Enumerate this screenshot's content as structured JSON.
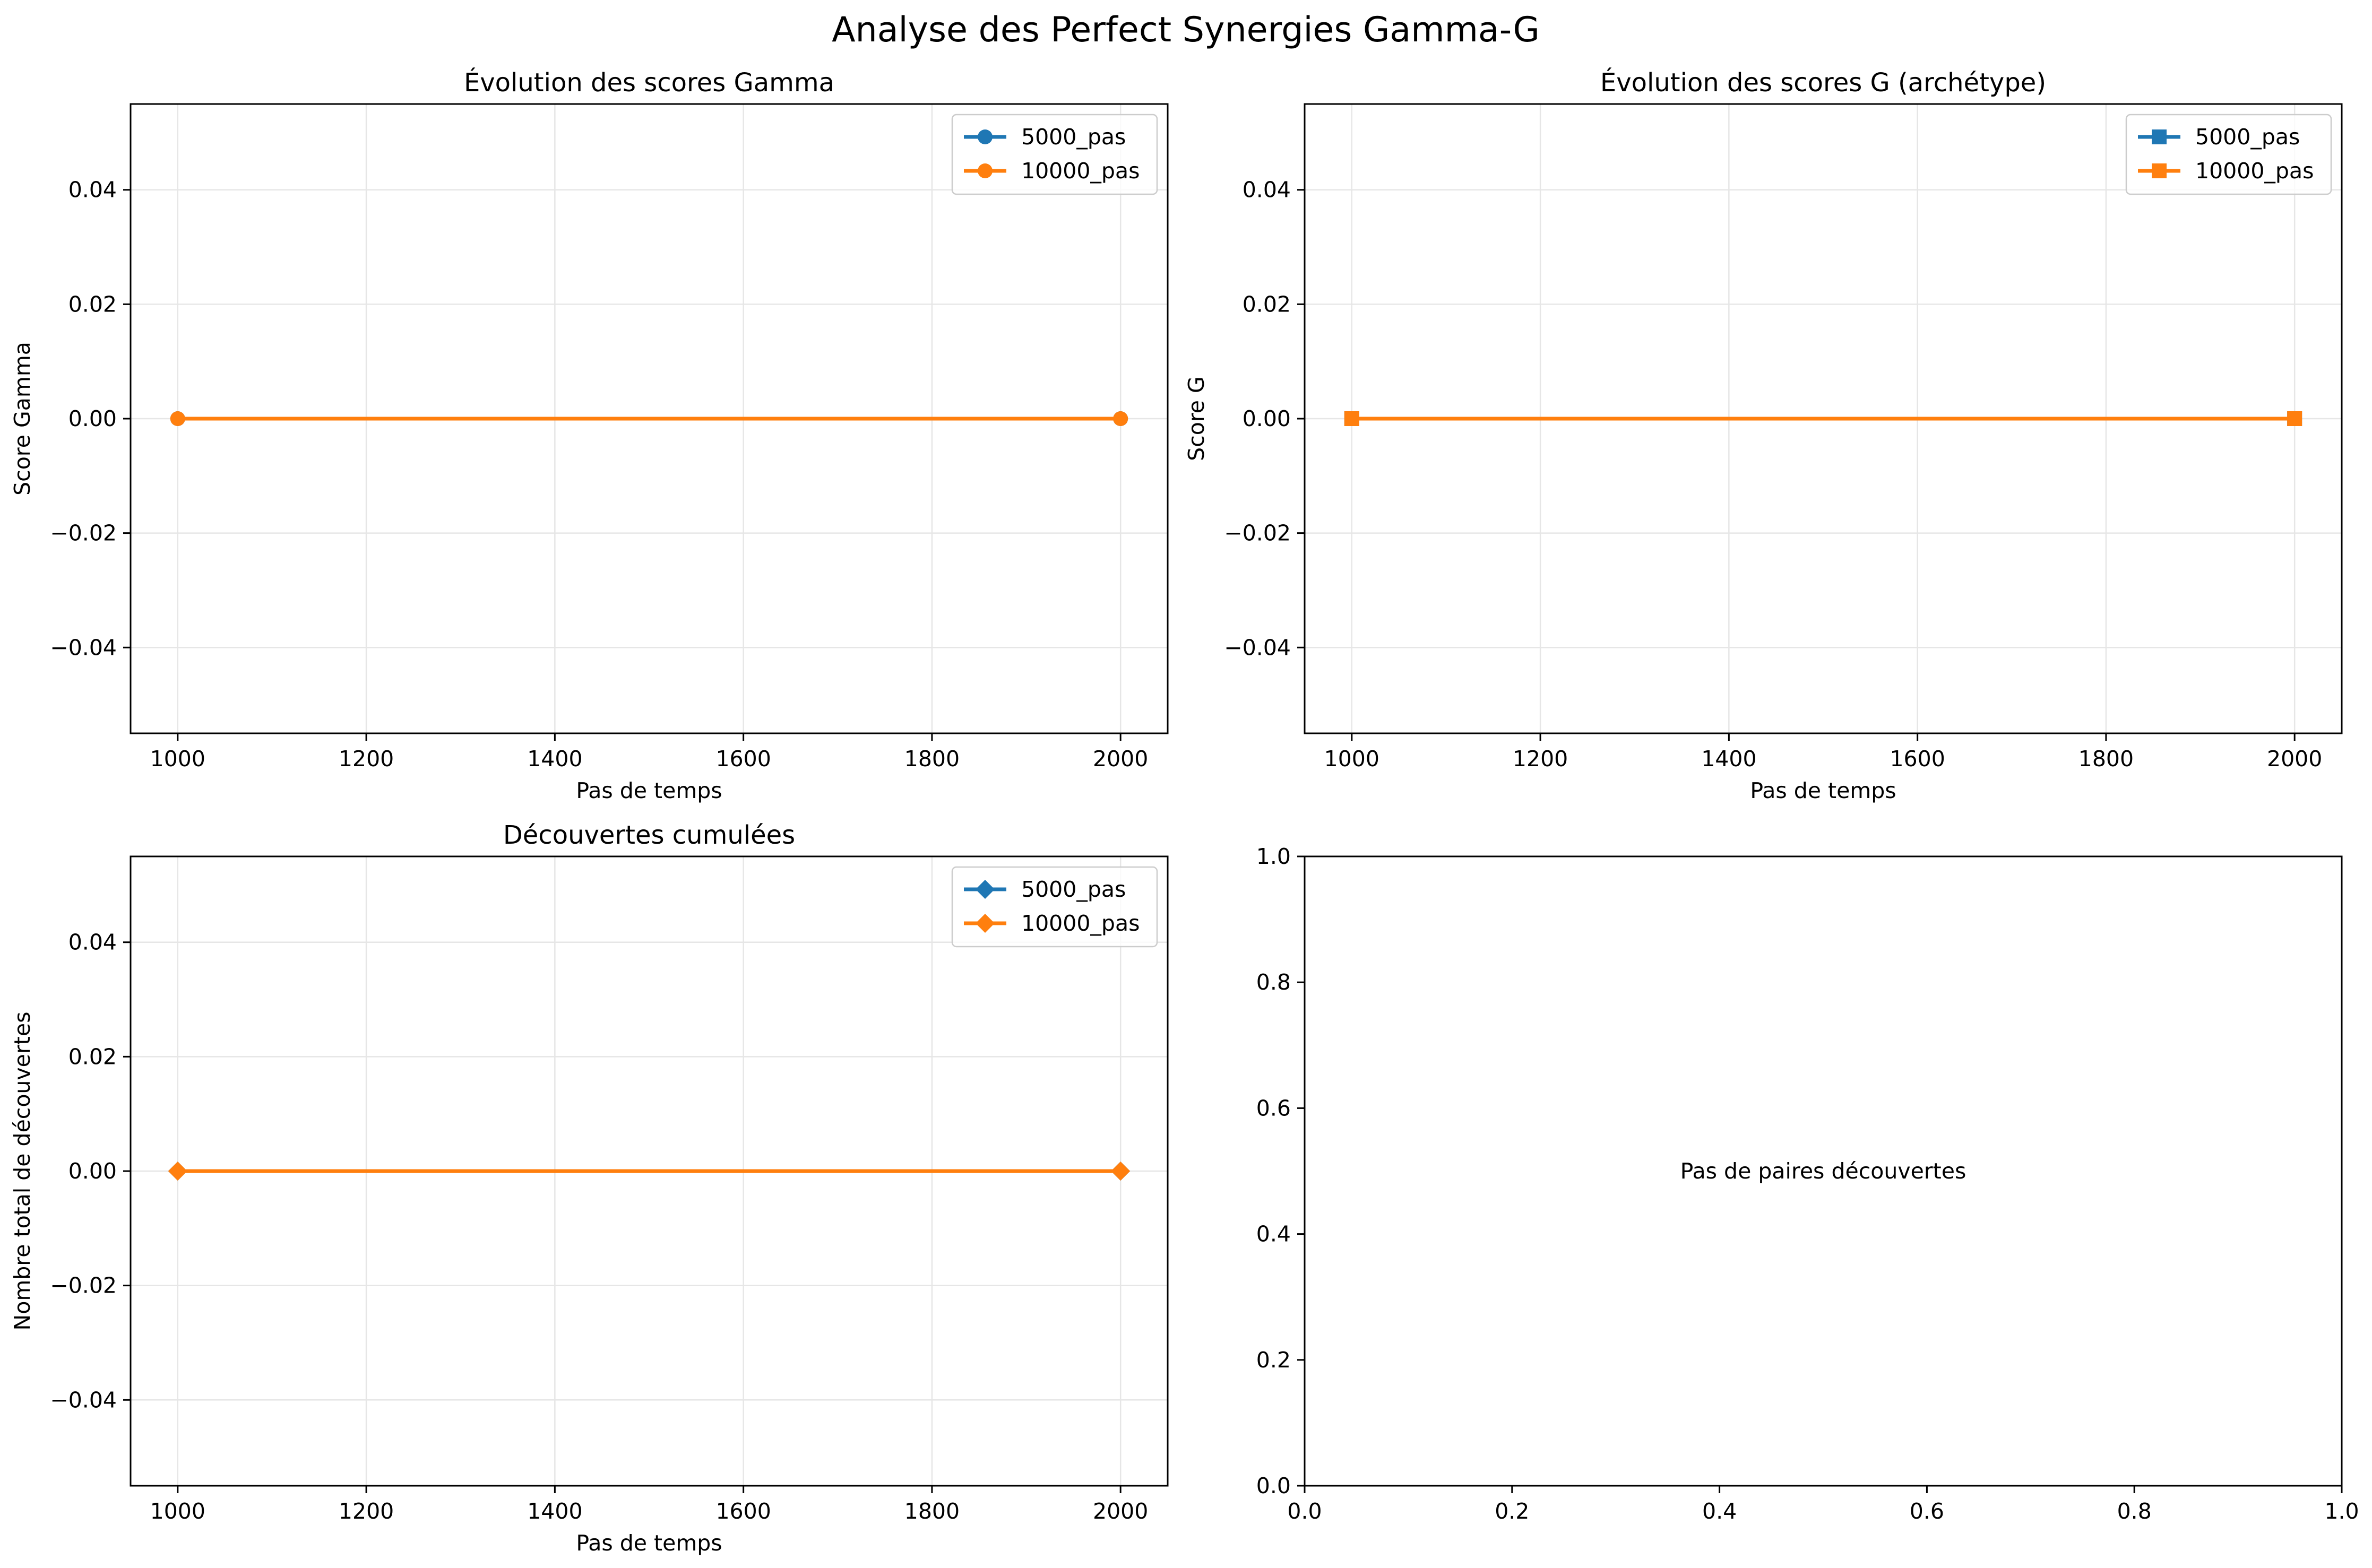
{
  "figure": {
    "title": "Analyse des Perfect Synergies Gamma-G"
  },
  "chart_data": [
    {
      "type": "line",
      "title": "Évolution des scores Gamma",
      "xlabel": "Pas de temps",
      "ylabel": "Score Gamma",
      "xlim": [
        950,
        2050
      ],
      "ylim": [
        -0.055,
        0.055
      ],
      "xticks": [
        1000,
        1200,
        1400,
        1600,
        1800,
        2000
      ],
      "yticks": [
        -0.04,
        -0.02,
        0.0,
        0.02,
        0.04
      ],
      "xtick_labels": [
        "1000",
        "1200",
        "1400",
        "1600",
        "1800",
        "2000"
      ],
      "ytick_labels": [
        "−0.04",
        "−0.02",
        "0.00",
        "0.02",
        "0.04"
      ],
      "grid": true,
      "legend": "top-right",
      "marker": "circle",
      "x": [
        1000,
        2000
      ],
      "series": [
        {
          "name": "5000_pas",
          "values": [
            0,
            0
          ],
          "color": "#1f77b4"
        },
        {
          "name": "10000_pas",
          "values": [
            0,
            0
          ],
          "color": "#ff7f0e"
        }
      ]
    },
    {
      "type": "line",
      "title": "Évolution des scores G (archétype)",
      "xlabel": "Pas de temps",
      "ylabel": "Score G",
      "xlim": [
        950,
        2050
      ],
      "ylim": [
        -0.055,
        0.055
      ],
      "xticks": [
        1000,
        1200,
        1400,
        1600,
        1800,
        2000
      ],
      "yticks": [
        -0.04,
        -0.02,
        0.0,
        0.02,
        0.04
      ],
      "xtick_labels": [
        "1000",
        "1200",
        "1400",
        "1600",
        "1800",
        "2000"
      ],
      "ytick_labels": [
        "−0.04",
        "−0.02",
        "0.00",
        "0.02",
        "0.04"
      ],
      "grid": true,
      "legend": "top-right",
      "marker": "square",
      "x": [
        1000,
        2000
      ],
      "series": [
        {
          "name": "5000_pas",
          "values": [
            0,
            0
          ],
          "color": "#1f77b4"
        },
        {
          "name": "10000_pas",
          "values": [
            0,
            0
          ],
          "color": "#ff7f0e"
        }
      ]
    },
    {
      "type": "line",
      "title": "Découvertes cumulées",
      "xlabel": "Pas de temps",
      "ylabel": "Nombre total de découvertes",
      "xlim": [
        950,
        2050
      ],
      "ylim": [
        -0.055,
        0.055
      ],
      "xticks": [
        1000,
        1200,
        1400,
        1600,
        1800,
        2000
      ],
      "yticks": [
        -0.04,
        -0.02,
        0.0,
        0.02,
        0.04
      ],
      "xtick_labels": [
        "1000",
        "1200",
        "1400",
        "1600",
        "1800",
        "2000"
      ],
      "ytick_labels": [
        "−0.04",
        "−0.02",
        "0.00",
        "0.02",
        "0.04"
      ],
      "grid": true,
      "legend": "top-right",
      "marker": "diamond",
      "x": [
        1000,
        2000
      ],
      "series": [
        {
          "name": "5000_pas",
          "values": [
            0,
            0
          ],
          "color": "#1f77b4"
        },
        {
          "name": "10000_pas",
          "values": [
            0,
            0
          ],
          "color": "#ff7f0e"
        }
      ]
    },
    {
      "type": "line",
      "title": "",
      "xlabel": "",
      "ylabel": "",
      "xlim": [
        0,
        1
      ],
      "ylim": [
        0,
        1
      ],
      "xticks": [
        0,
        0.2,
        0.4,
        0.6,
        0.8,
        1.0
      ],
      "yticks": [
        0,
        0.2,
        0.4,
        0.6,
        0.8,
        1.0
      ],
      "xtick_labels": [
        "0.0",
        "0.2",
        "0.4",
        "0.6",
        "0.8",
        "1.0"
      ],
      "ytick_labels": [
        "0.0",
        "0.2",
        "0.4",
        "0.6",
        "0.8",
        "1.0"
      ],
      "grid": false,
      "series": [],
      "annotation": {
        "text": "Pas de paires découvertes",
        "x": 0.5,
        "y": 0.5
      }
    }
  ]
}
